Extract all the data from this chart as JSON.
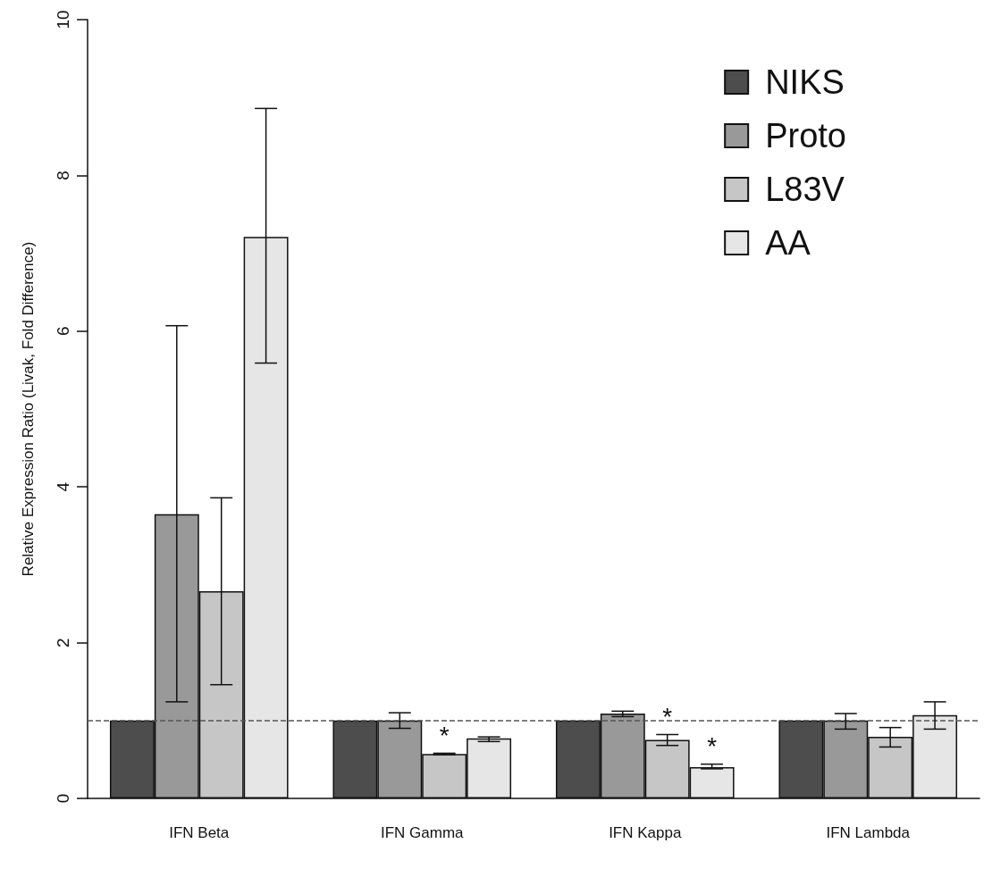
{
  "chart_data": {
    "type": "bar",
    "ylabel": "Relative Expression Ratio (Livak, Fold Difference)",
    "categories": [
      "IFN Beta",
      "IFN Gamma",
      "IFN Kappa",
      "IFN Lambda"
    ],
    "series": [
      {
        "name": "NIKS",
        "color": "#4d4d4d",
        "values": [
          1,
          1,
          1,
          1
        ]
      },
      {
        "name": "Proto",
        "color": "#999999",
        "values": [
          3.65,
          1.0,
          1.09,
          1.0
        ],
        "errors": [
          [
            1.24,
            6.07
          ],
          [
            0.9,
            1.1
          ],
          [
            1.05,
            1.12
          ],
          [
            0.89,
            1.09
          ]
        ]
      },
      {
        "name": "L83V",
        "color": "#c6c6c6",
        "values": [
          2.66,
          0.57,
          0.75,
          0.79
        ],
        "errors": [
          [
            1.46,
            3.86
          ],
          [
            0.56,
            0.58
          ],
          [
            0.68,
            0.82
          ],
          [
            0.66,
            0.91
          ]
        ],
        "value_labels": [
          null,
          "*",
          "*",
          null
        ]
      },
      {
        "name": "AA",
        "color": "#e6e6e6",
        "values": [
          7.21,
          0.77,
          0.4,
          1.07
        ],
        "errors": [
          [
            5.59,
            8.86
          ],
          [
            0.73,
            0.79
          ],
          [
            0.38,
            0.44
          ],
          [
            0.89,
            1.24
          ]
        ],
        "value_labels": [
          null,
          null,
          "*",
          null
        ]
      }
    ],
    "ylim": [
      0,
      10
    ],
    "yticks": [
      0,
      2,
      4,
      6,
      8,
      10
    ],
    "ref_lines": [
      {
        "axis": "y",
        "value": 1,
        "line_style": "dashed",
        "color": "#555555"
      }
    ],
    "grid": false,
    "legend": "top right"
  }
}
